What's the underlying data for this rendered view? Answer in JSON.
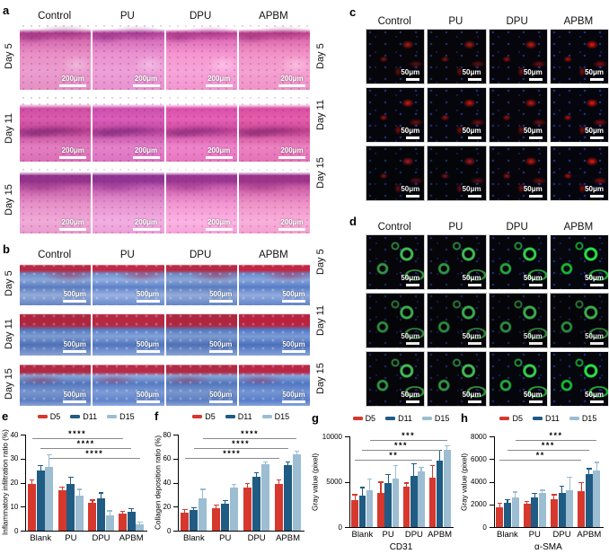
{
  "panels": {
    "a": {
      "letter": "a",
      "columns": [
        "Control",
        "PU",
        "DPU",
        "APBM"
      ],
      "rows": [
        "Day 5",
        "Day 11",
        "Day 15"
      ],
      "scale_bar": "200μm"
    },
    "b": {
      "letter": "b",
      "columns": [
        "Control",
        "PU",
        "DPU",
        "APBM"
      ],
      "rows": [
        "Day 5",
        "Day 11",
        "Day 15"
      ],
      "scale_bar": "500μm"
    },
    "c": {
      "letter": "c",
      "columns": [
        "Control",
        "PU",
        "DPU",
        "APBM"
      ],
      "rows": [
        "Day 5",
        "Day 11",
        "Day 15"
      ],
      "scale_bar": "50μm"
    },
    "d": {
      "letter": "d",
      "columns": [
        "Control",
        "PU",
        "DPU",
        "APBM"
      ],
      "rows": [
        "Day 5",
        "Day 11",
        "Day 15"
      ],
      "scale_bar": "50μm"
    }
  },
  "colors": {
    "d5": "#d6382e",
    "d11": "#1f5b82",
    "d15": "#9cbdd2",
    "sig_line": "#8a8a8a"
  },
  "chart_data": [
    {
      "id": "e",
      "letter": "e",
      "type": "bar",
      "title": "",
      "ylabel": "Inflammatory infiltration ratio (%)",
      "xlabel": "",
      "ylim": [
        0,
        40
      ],
      "yticks": [
        0,
        10,
        20,
        30,
        40
      ],
      "grid": false,
      "legend_position": "top",
      "categories": [
        "Blank",
        "PU",
        "DPU",
        "APBM"
      ],
      "series": [
        {
          "name": "D5",
          "color": "#d6382e",
          "values": [
            19.5,
            17,
            11.5,
            7
          ],
          "errors": [
            1.5,
            1,
            1,
            0.8
          ]
        },
        {
          "name": "D11",
          "color": "#1f5b82",
          "values": [
            25,
            19.5,
            13.5,
            8
          ],
          "errors": [
            2,
            2.5,
            2,
            1
          ]
        },
        {
          "name": "D15",
          "color": "#9cbdd2",
          "values": [
            26.5,
            14.5,
            6.5,
            2.5
          ],
          "errors": [
            5,
            2.5,
            1.5,
            0.8
          ]
        }
      ],
      "sig": [
        {
          "label": "****",
          "series": 2,
          "level": 0
        },
        {
          "label": "****",
          "series": 1,
          "level": 1
        },
        {
          "label": "****",
          "series": 0,
          "level": 2
        }
      ]
    },
    {
      "id": "f",
      "letter": "f",
      "type": "bar",
      "title": "",
      "ylabel": "Collagen deposition ratio (%)",
      "xlabel": "",
      "ylim": [
        0,
        80
      ],
      "yticks": [
        0,
        20,
        40,
        60,
        80
      ],
      "grid": false,
      "legend_position": "top",
      "categories": [
        "Blank",
        "PU",
        "DPU",
        "APBM"
      ],
      "series": [
        {
          "name": "D5",
          "color": "#d6382e",
          "values": [
            15,
            18.5,
            36,
            39
          ],
          "errors": [
            2,
            2.5,
            3,
            3
          ]
        },
        {
          "name": "D11",
          "color": "#1f5b82",
          "values": [
            17.5,
            22.5,
            45,
            54.5
          ],
          "errors": [
            1,
            2,
            3,
            2
          ]
        },
        {
          "name": "D15",
          "color": "#9cbdd2",
          "values": [
            27,
            36,
            55,
            63.5
          ],
          "errors": [
            7,
            2,
            1.5,
            2.5
          ]
        }
      ],
      "sig": [
        {
          "label": "****",
          "series": 0,
          "level": 0
        },
        {
          "label": "****",
          "series": 1,
          "level": 1
        },
        {
          "label": "****",
          "series": 2,
          "level": 2
        }
      ]
    },
    {
      "id": "g",
      "letter": "g",
      "type": "bar",
      "title": "",
      "ylabel": "Gray value (pixel)",
      "xlabel": "CD31",
      "ylim": [
        0,
        10000
      ],
      "yticks": [
        0,
        5000,
        10000
      ],
      "grid": false,
      "legend_position": "top",
      "categories": [
        "Blank",
        "PU",
        "DPU",
        "APBM"
      ],
      "series": [
        {
          "name": "D5",
          "color": "#d6382e",
          "values": [
            3000,
            3800,
            4500,
            5400
          ],
          "errors": [
            500,
            1100,
            300,
            1300
          ]
        },
        {
          "name": "D11",
          "color": "#1f5b82",
          "values": [
            3500,
            4900,
            5600,
            7300
          ],
          "errors": [
            800,
            800,
            1300,
            1100
          ]
        },
        {
          "name": "D15",
          "color": "#9cbdd2",
          "values": [
            4100,
            5300,
            6100,
            8500
          ],
          "errors": [
            1100,
            1400,
            400,
            400
          ]
        }
      ],
      "sig": [
        {
          "label": "**",
          "series": 0,
          "level": 0
        },
        {
          "label": "***",
          "series": 1,
          "level": 1
        },
        {
          "label": "***",
          "series": 2,
          "level": 2
        }
      ]
    },
    {
      "id": "h",
      "letter": "h",
      "type": "bar",
      "title": "",
      "ylabel": "Gray value (pixel)",
      "xlabel": "α-SMA",
      "ylim": [
        0,
        8000
      ],
      "yticks": [
        0,
        2000,
        4000,
        6000,
        8000
      ],
      "grid": false,
      "legend_position": "top",
      "categories": [
        "Blank",
        "PU",
        "DPU",
        "APBM"
      ],
      "series": [
        {
          "name": "D5",
          "color": "#d6382e",
          "values": [
            1750,
            2050,
            2450,
            3150
          ],
          "errors": [
            300,
            150,
            350,
            750
          ]
        },
        {
          "name": "D11",
          "color": "#1f5b82",
          "values": [
            2150,
            2650,
            3050,
            4650
          ],
          "errors": [
            250,
            300,
            500,
            450
          ]
        },
        {
          "name": "D15",
          "color": "#9cbdd2",
          "values": [
            2600,
            3000,
            3250,
            5000
          ],
          "errors": [
            450,
            200,
            1100,
            650
          ]
        }
      ],
      "sig": [
        {
          "label": "**",
          "series": 0,
          "level": 0
        },
        {
          "label": "***",
          "series": 1,
          "level": 1
        },
        {
          "label": "***",
          "series": 2,
          "level": 2
        }
      ]
    }
  ]
}
